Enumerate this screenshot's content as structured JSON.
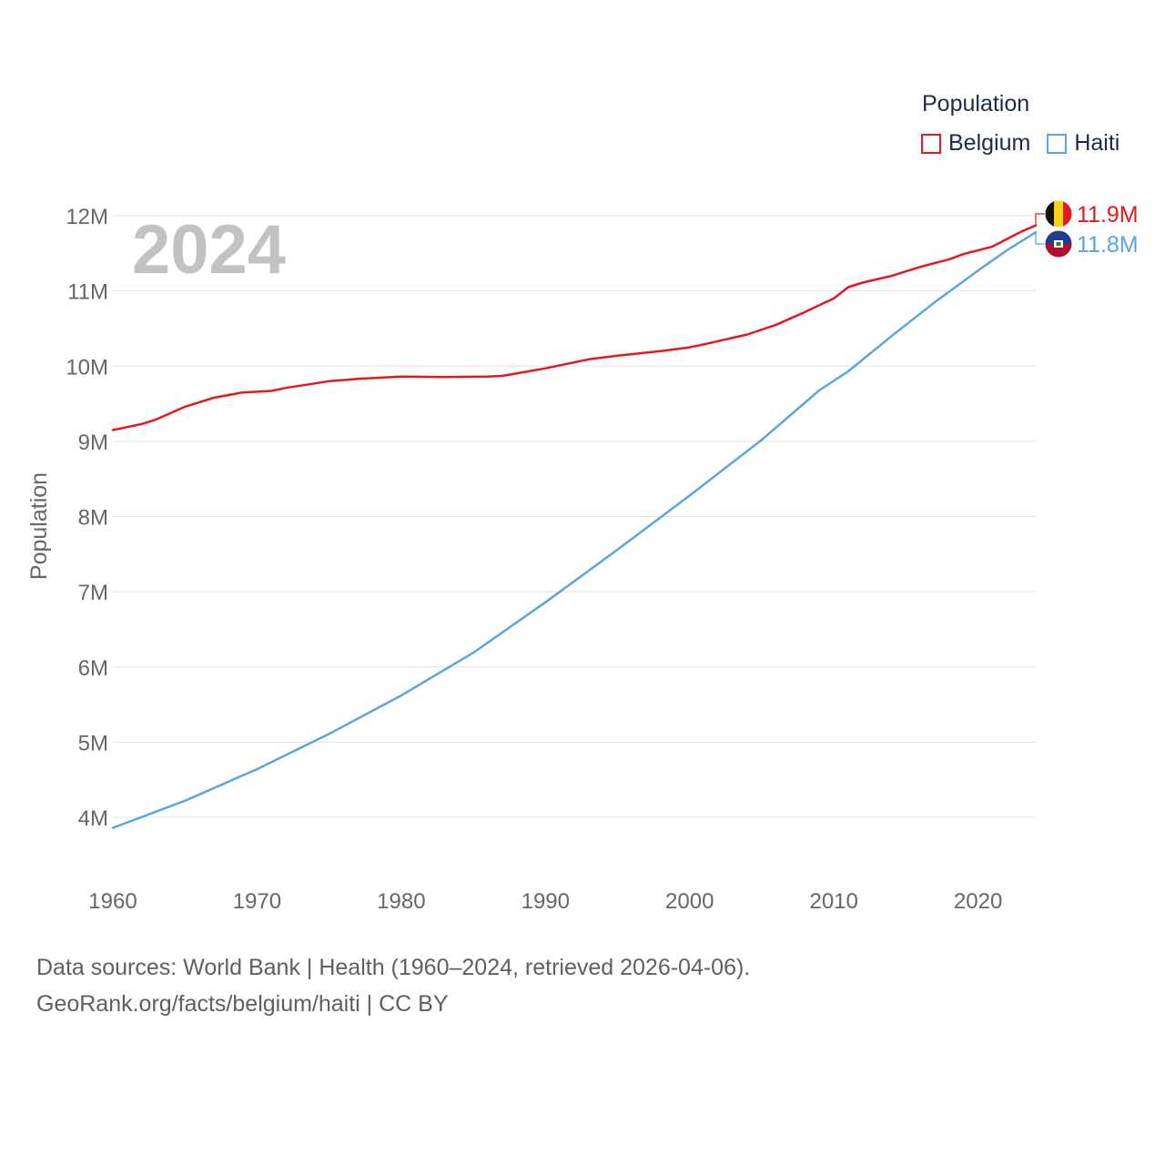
{
  "chart_data": {
    "type": "line",
    "title": "Population",
    "big_year_label": "2024",
    "xlabel": "",
    "ylabel": "Population",
    "xlim": [
      1960,
      2024
    ],
    "ylim": [
      3500000,
      12300000
    ],
    "x_ticks": [
      1960,
      1970,
      1980,
      1990,
      2000,
      2010,
      2020
    ],
    "y_ticks": [
      {
        "value": 4000000,
        "label": "4M"
      },
      {
        "value": 5000000,
        "label": "5M"
      },
      {
        "value": 6000000,
        "label": "6M"
      },
      {
        "value": 7000000,
        "label": "7M"
      },
      {
        "value": 8000000,
        "label": "8M"
      },
      {
        "value": 9000000,
        "label": "9M"
      },
      {
        "value": 10000000,
        "label": "10M"
      },
      {
        "value": 11000000,
        "label": "11M"
      },
      {
        "value": 12000000,
        "label": "12M"
      }
    ],
    "grid": true,
    "legend_position": "top-right",
    "series": [
      {
        "name": "Belgium",
        "color": "#e31a1c",
        "end_label": "11.9M",
        "flag": "belgium-flag-icon",
        "points": [
          [
            1960,
            9150000
          ],
          [
            1962,
            9230000
          ],
          [
            1963,
            9290000
          ],
          [
            1965,
            9460000
          ],
          [
            1967,
            9580000
          ],
          [
            1969,
            9650000
          ],
          [
            1971,
            9670000
          ],
          [
            1972,
            9710000
          ],
          [
            1975,
            9800000
          ],
          [
            1977,
            9830000
          ],
          [
            1980,
            9860000
          ],
          [
            1983,
            9855000
          ],
          [
            1986,
            9860000
          ],
          [
            1987,
            9870000
          ],
          [
            1990,
            9970000
          ],
          [
            1993,
            10090000
          ],
          [
            1995,
            10140000
          ],
          [
            1998,
            10200000
          ],
          [
            2000,
            10250000
          ],
          [
            2001,
            10290000
          ],
          [
            2004,
            10420000
          ],
          [
            2006,
            10550000
          ],
          [
            2008,
            10720000
          ],
          [
            2009,
            10810000
          ],
          [
            2010,
            10900000
          ],
          [
            2011,
            11050000
          ],
          [
            2012,
            11110000
          ],
          [
            2014,
            11200000
          ],
          [
            2016,
            11320000
          ],
          [
            2018,
            11420000
          ],
          [
            2019,
            11490000
          ],
          [
            2021,
            11590000
          ],
          [
            2023,
            11790000
          ],
          [
            2024,
            11870000
          ]
        ]
      },
      {
        "name": "Haiti",
        "color": "#5aa4e3",
        "end_label": "11.8M",
        "flag": "haiti-flag-icon",
        "points": [
          [
            1960,
            3860000
          ],
          [
            1965,
            4220000
          ],
          [
            1970,
            4640000
          ],
          [
            1975,
            5110000
          ],
          [
            1980,
            5620000
          ],
          [
            1985,
            6190000
          ],
          [
            1990,
            6860000
          ],
          [
            1995,
            7560000
          ],
          [
            2000,
            8280000
          ],
          [
            2005,
            9020000
          ],
          [
            2009,
            9680000
          ],
          [
            2011,
            9930000
          ],
          [
            2014,
            10400000
          ],
          [
            2017,
            10850000
          ],
          [
            2020,
            11270000
          ],
          [
            2022,
            11540000
          ],
          [
            2024,
            11780000
          ]
        ]
      }
    ]
  },
  "legend": {
    "title": "Population",
    "items": [
      {
        "label": "Belgium",
        "color": "#e31a1c"
      },
      {
        "label": "Haiti",
        "color": "#5aa4e3"
      }
    ]
  },
  "footer": {
    "sources": "Data sources: World Bank | Health (1960–2024, retrieved 2026-04-06).",
    "credit": "GeoRank.org/facts/belgium/haiti | CC BY"
  }
}
